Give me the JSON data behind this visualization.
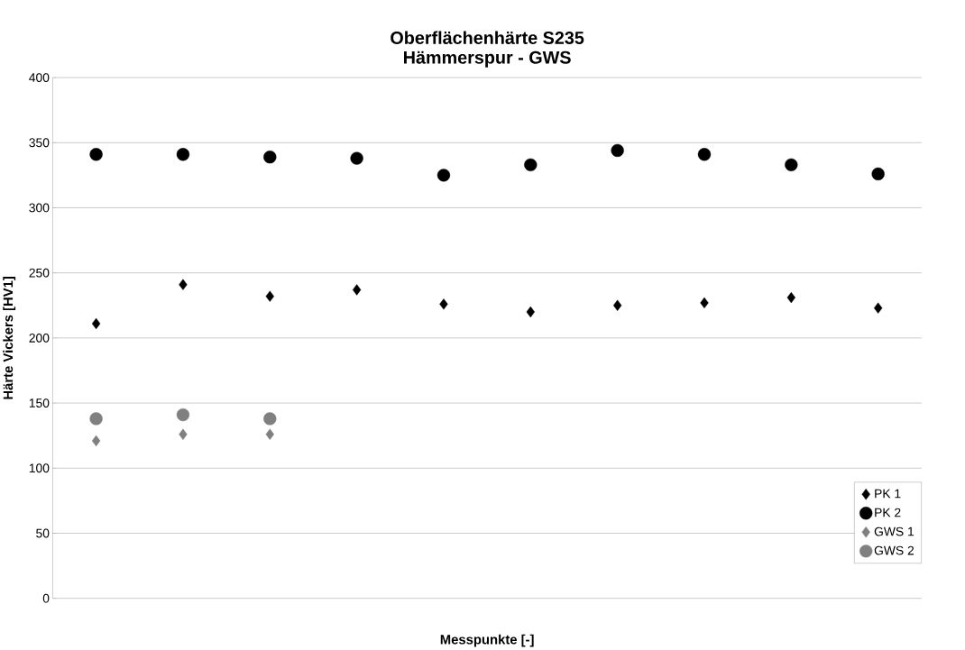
{
  "chart_data": {
    "type": "scatter",
    "title": "Oberflächenhärte S235",
    "subtitle": "Hämmerspur - GWS",
    "xlabel": "Messpunkte [-]",
    "ylabel": "Härte Vickers [HV1]",
    "categories": [
      null,
      null,
      null,
      null,
      null,
      null,
      null,
      null,
      null,
      null
    ],
    "series": [
      {
        "name": "PK 1",
        "color": "#000000",
        "marker": "diamond",
        "values": [
          211,
          241,
          232,
          237,
          226,
          220,
          225,
          227,
          231,
          223
        ]
      },
      {
        "name": "PK 2",
        "color": "#000000",
        "marker": "circle",
        "values": [
          341,
          341,
          339,
          338,
          325,
          333,
          344,
          341,
          333,
          326
        ]
      },
      {
        "name": "GWS 1",
        "color": "#808080",
        "marker": "diamond",
        "values": [
          121,
          126,
          126,
          null,
          null,
          null,
          null,
          null,
          null,
          null
        ]
      },
      {
        "name": "GWS 2",
        "color": "#808080",
        "marker": "circle",
        "values": [
          138,
          141,
          138,
          null,
          null,
          null,
          null,
          null,
          null,
          null
        ]
      }
    ],
    "ylim": [
      0,
      400
    ],
    "yticks": [
      0,
      50,
      100,
      150,
      200,
      250,
      300,
      350,
      400
    ],
    "grid": "y",
    "legend": "bottom right",
    "tick_labels": "y"
  }
}
